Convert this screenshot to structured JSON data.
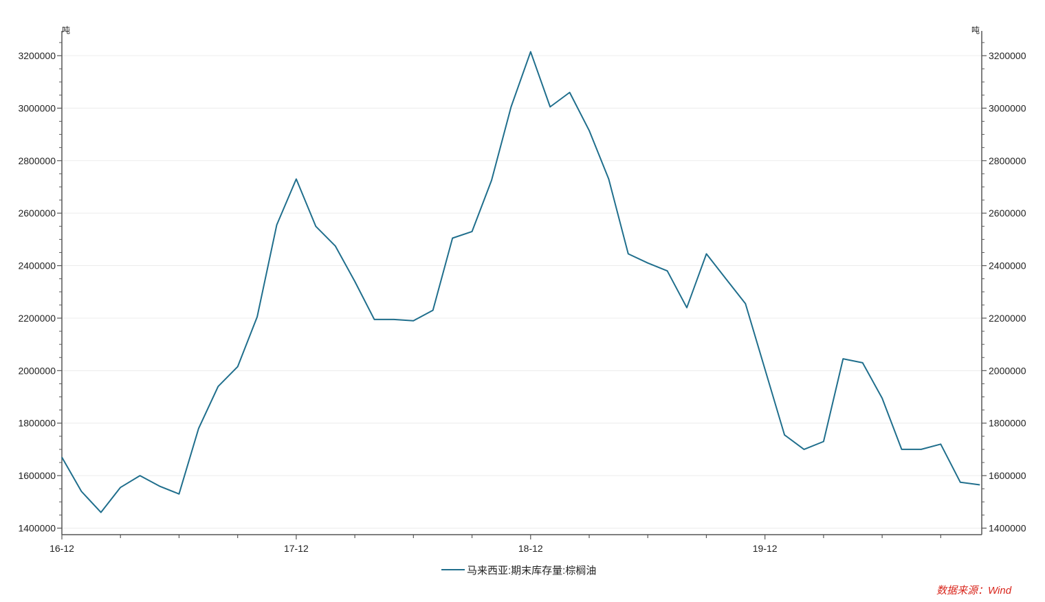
{
  "chart_data": {
    "type": "line",
    "title": "",
    "xlabel": "",
    "ylabel": "",
    "unit_left": "吨",
    "unit_right": "吨",
    "ylim": [
      1400000,
      3300000
    ],
    "y_ticks": [
      1400000,
      1600000,
      1800000,
      2000000,
      2200000,
      2400000,
      2600000,
      2800000,
      3000000,
      3200000
    ],
    "y_tick_labels": [
      "1400000",
      "1600000",
      "1800000",
      "2000000",
      "2200000",
      "2400000",
      "2600000",
      "2800000",
      "3000000",
      "3200000"
    ],
    "x_tick_labels": [
      "16-12",
      "17-12",
      "18-12",
      "19-12"
    ],
    "grid": true,
    "legend_position": "bottom-center",
    "series": [
      {
        "name": "马来西亚:期末库存量:棕榈油",
        "color": "#1f6e8c",
        "x": [
          "2016-12",
          "2017-01",
          "2017-02",
          "2017-03",
          "2017-04",
          "2017-05",
          "2017-06",
          "2017-07",
          "2017-08",
          "2017-09",
          "2017-10",
          "2017-11",
          "2017-12",
          "2018-01",
          "2018-02",
          "2018-03",
          "2018-04",
          "2018-05",
          "2018-06",
          "2018-07",
          "2018-08",
          "2018-09",
          "2018-10",
          "2018-11",
          "2018-12",
          "2019-01",
          "2019-02",
          "2019-03",
          "2019-04",
          "2019-05",
          "2019-06",
          "2019-07",
          "2019-08",
          "2019-09",
          "2019-10",
          "2019-11",
          "2019-12",
          "2020-01",
          "2020-02",
          "2020-03",
          "2020-04",
          "2020-05",
          "2020-06",
          "2020-07",
          "2020-08",
          "2020-09",
          "2020-10",
          "2020-11"
        ],
        "values": [
          1670000,
          1540000,
          1460000,
          1555000,
          1600000,
          1560000,
          1530000,
          1780000,
          1940000,
          2015000,
          2205000,
          2555000,
          2730000,
          2550000,
          2475000,
          2340000,
          2195000,
          2195000,
          2190000,
          2230000,
          2505000,
          2530000,
          2725000,
          3005000,
          3215000,
          3005000,
          3060000,
          2915000,
          2730000,
          2445000,
          2410000,
          2380000,
          2240000,
          2445000,
          2350000,
          2255000,
          2005000,
          1755000,
          1700000,
          1730000,
          2045000,
          2030000,
          1895000,
          1700000,
          1700000,
          1720000,
          1575000,
          1565000
        ]
      }
    ]
  },
  "source_note": "数据来源：Wind"
}
